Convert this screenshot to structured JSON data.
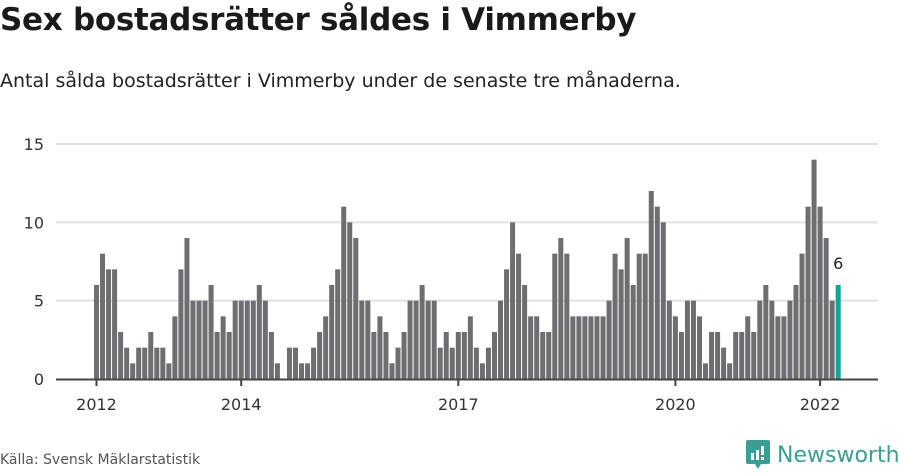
{
  "header": {
    "title": "Sex bostadsrätter såldes i Vimmerby",
    "subtitle": "Antal sålda bostadsrätter i Vimmerby under de senaste tre månaderna."
  },
  "footer": {
    "source": "Källa: Svensk Mäklarstatistik",
    "brand": "Newsworthy"
  },
  "colors": {
    "bar": "#6e6d72",
    "highlight": "#0fa39a",
    "grid": "#e2e2e2",
    "axis": "#444444",
    "brand": "#3a9e93"
  },
  "chart_data": {
    "type": "bar",
    "title": "Sex bostadsrätter såldes i Vimmerby",
    "subtitle": "Antal sålda bostadsrätter i Vimmerby under de senaste tre månaderna.",
    "xlabel": "",
    "ylabel": "",
    "ylim": [
      0,
      15
    ],
    "yticks": [
      0,
      5,
      10,
      15
    ],
    "grid": true,
    "legend": null,
    "x_tick_labels": [
      {
        "label": "2012",
        "index": 0
      },
      {
        "label": "2014",
        "index": 24
      },
      {
        "label": "2017",
        "index": 60
      },
      {
        "label": "2020",
        "index": 96
      },
      {
        "label": "2022",
        "index": 120
      }
    ],
    "start": "2012-01",
    "frequency": "monthly",
    "values": [
      6,
      8,
      7,
      7,
      3,
      2,
      1,
      2,
      2,
      3,
      2,
      2,
      1,
      4,
      7,
      9,
      5,
      5,
      5,
      6,
      3,
      4,
      3,
      5,
      5,
      5,
      5,
      6,
      5,
      3,
      1,
      0,
      2,
      2,
      1,
      1,
      2,
      3,
      4,
      6,
      7,
      11,
      10,
      9,
      5,
      5,
      3,
      4,
      3,
      1,
      2,
      3,
      5,
      5,
      6,
      5,
      5,
      2,
      3,
      2,
      3,
      3,
      4,
      2,
      1,
      2,
      3,
      5,
      7,
      10,
      8,
      6,
      4,
      4,
      3,
      3,
      8,
      9,
      8,
      4,
      4,
      4,
      4,
      4,
      4,
      5,
      8,
      7,
      9,
      6,
      8,
      8,
      12,
      11,
      10,
      5,
      4,
      3,
      5,
      5,
      4,
      1,
      3,
      3,
      2,
      1,
      3,
      3,
      4,
      3,
      5,
      6,
      5,
      4,
      4,
      5,
      6,
      8,
      11,
      14,
      11,
      9,
      5,
      6
    ],
    "highlight_index": 123,
    "annotation": {
      "text": "6",
      "index": 123
    }
  }
}
